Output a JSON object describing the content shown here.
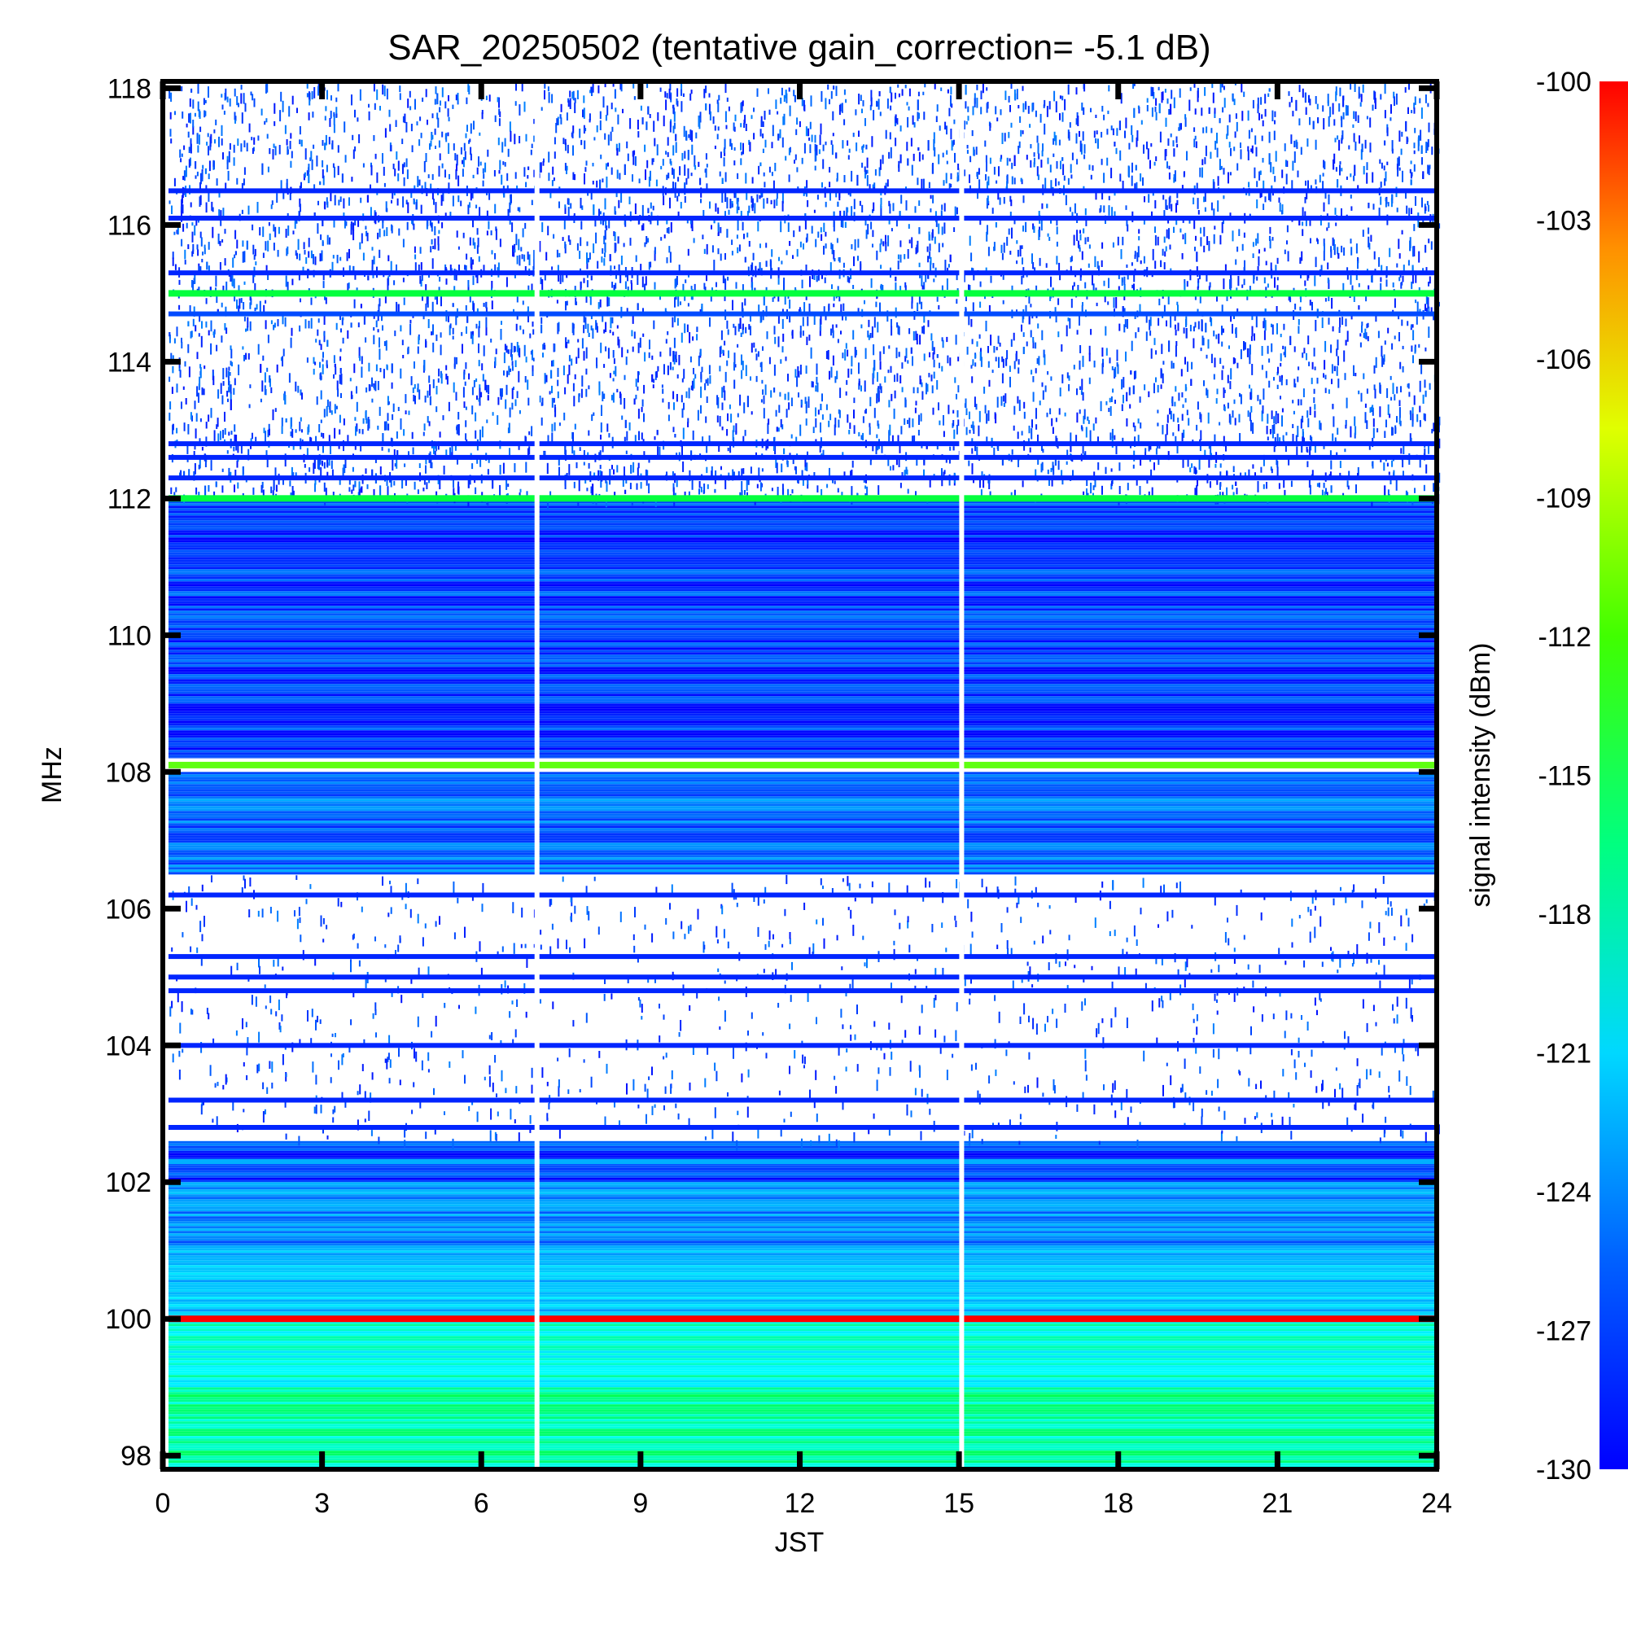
{
  "chart_data": {
    "type": "heatmap",
    "title": "SAR_20250502 (tentative gain_correction= -5.1 dB)",
    "xlabel": "JST",
    "ylabel": "MHz",
    "colorbar_label": "signal intensity (dBm)",
    "xlim": [
      0,
      24
    ],
    "ylim": [
      97.8,
      118.1
    ],
    "x_ticks": [
      "0",
      "3",
      "6",
      "9",
      "12",
      "15",
      "18",
      "21",
      "24"
    ],
    "y_ticks": [
      "98",
      "100",
      "102",
      "104",
      "106",
      "108",
      "110",
      "112",
      "114",
      "116",
      "118"
    ],
    "colorbar_range": [
      -130,
      -100
    ],
    "colorbar_ticks": [
      "-100",
      "-103",
      "-106",
      "-109",
      "-112",
      "-115",
      "-118",
      "-121",
      "-124",
      "-127",
      "-130"
    ],
    "colormap": [
      "#0000ff",
      "#00a0ff",
      "#00ffff",
      "#00ff40",
      "#80ff00",
      "#ffff00",
      "#ff8000",
      "#ff0000"
    ],
    "data_gaps_jst": [
      7.05,
      15.05
    ],
    "frequency_bands": [
      {
        "from": 97.8,
        "to": 99.0,
        "level_dBm": -119.5
      },
      {
        "from": 99.0,
        "to": 100.0,
        "level_dBm": -121.0
      },
      {
        "from": 100.0,
        "to": 101.0,
        "level_dBm": -124.0
      },
      {
        "from": 101.0,
        "to": 102.0,
        "level_dBm": -126.0
      },
      {
        "from": 102.0,
        "to": 102.6,
        "level_dBm": -128.5
      },
      {
        "from": 106.5,
        "to": 108.0,
        "level_dBm": -127.0
      },
      {
        "from": 108.2,
        "to": 112.0,
        "level_dBm": -128.5
      }
    ],
    "sparse_regions": [
      {
        "from": 102.6,
        "to": 106.5,
        "density": 0.12
      },
      {
        "from": 112.0,
        "to": 118.1,
        "density": 0.45
      }
    ],
    "strong_carriers": [
      {
        "freq": 100.0,
        "level_dBm": -100
      },
      {
        "freq": 108.1,
        "level_dBm": -114
      },
      {
        "freq": 112.0,
        "level_dBm": -117
      },
      {
        "freq": 115.0,
        "level_dBm": -117
      }
    ],
    "persistent_lines": [
      {
        "freq": 102.3,
        "level_dBm": -125
      },
      {
        "freq": 102.8,
        "level_dBm": -129
      },
      {
        "freq": 103.2,
        "level_dBm": -129
      },
      {
        "freq": 104.0,
        "level_dBm": -129
      },
      {
        "freq": 104.8,
        "level_dBm": -129
      },
      {
        "freq": 105.0,
        "level_dBm": -129
      },
      {
        "freq": 105.3,
        "level_dBm": -129
      },
      {
        "freq": 106.2,
        "level_dBm": -129
      },
      {
        "freq": 112.3,
        "level_dBm": -129
      },
      {
        "freq": 112.6,
        "level_dBm": -129
      },
      {
        "freq": 112.8,
        "level_dBm": -129
      },
      {
        "freq": 114.7,
        "level_dBm": -128
      },
      {
        "freq": 115.3,
        "level_dBm": -129
      },
      {
        "freq": 116.1,
        "level_dBm": -129
      },
      {
        "freq": 116.5,
        "level_dBm": -129
      }
    ]
  }
}
